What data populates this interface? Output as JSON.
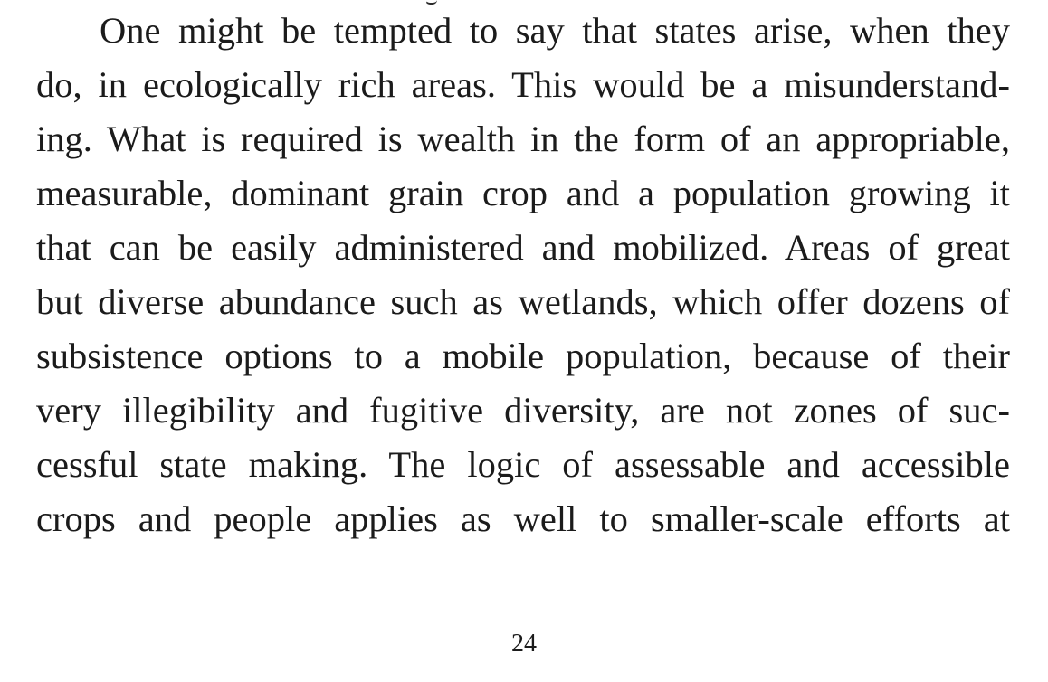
{
  "document": {
    "lines": [
      "One might be tempted to say that states arise, when they",
      "do, in ecologically rich areas. This would be a misunderstand-",
      "ing. What is required is wealth in the form of an appropriable,",
      "measurable, dominant grain crop and a population growing it",
      "that can be easily administered and mobilized. Areas of great",
      "but diverse abundance such as wetlands, which offer dozens of",
      "subsistence options to a mobile population, because of their",
      "very illegibility and fugitive diversity, are not zones of suc-",
      "cessful state making. The logic of assessable and accessible",
      "crops and people applies as well to smaller-scale efforts at"
    ],
    "page_number": "24"
  }
}
